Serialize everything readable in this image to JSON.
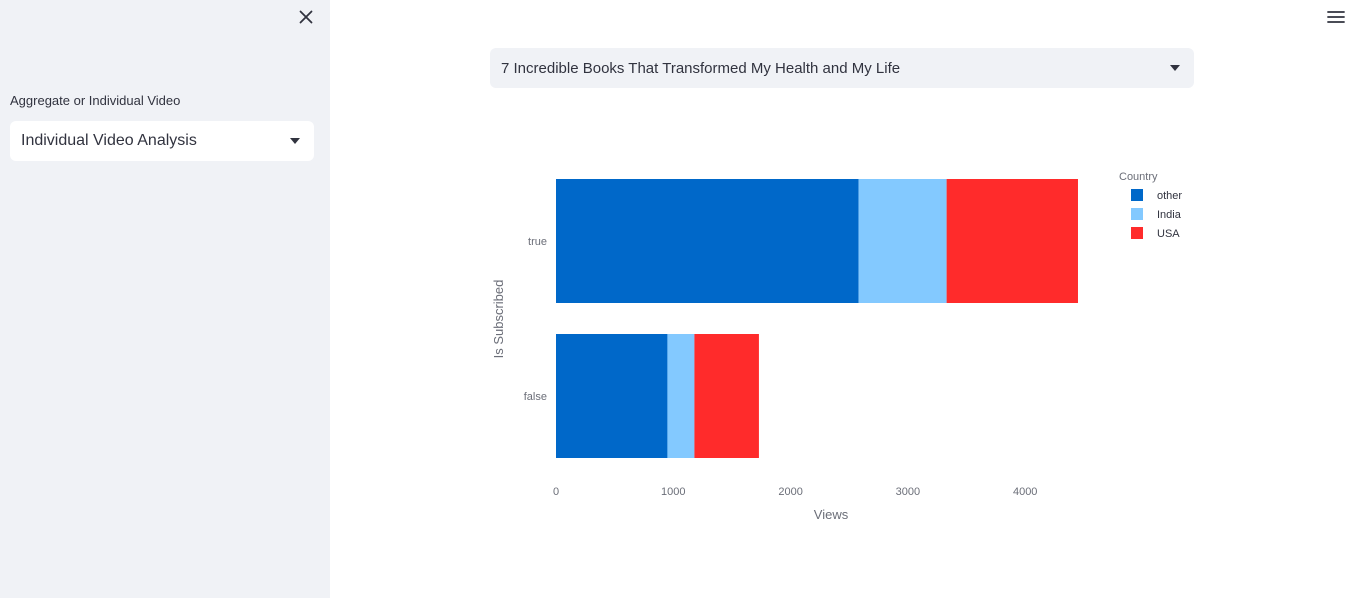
{
  "sidebar": {
    "close_icon": "close-icon",
    "select_label": "Aggregate or Individual Video",
    "select_value": "Individual Video Analysis"
  },
  "header": {
    "menu_icon": "hamburger-menu-icon"
  },
  "main": {
    "video_select_value": "7 Incredible Books That Transformed My Health and My Life"
  },
  "chart_data": {
    "type": "bar",
    "orientation": "horizontal",
    "stacked": true,
    "categories": [
      "true",
      "false"
    ],
    "xlabel": "Views",
    "ylabel": "Is Subscribed",
    "xlim": [
      0,
      4600
    ],
    "xticks": [
      0,
      1000,
      2000,
      3000,
      4000
    ],
    "legend_title": "Country",
    "legend_position": "top-right",
    "series": [
      {
        "name": "other",
        "color": "#0068c9",
        "values": [
          2580,
          950
        ]
      },
      {
        "name": "India",
        "color": "#83c9ff",
        "values": [
          750,
          230
        ]
      },
      {
        "name": "USA",
        "color": "#ff2b2b",
        "values": [
          1120,
          550
        ]
      }
    ]
  }
}
